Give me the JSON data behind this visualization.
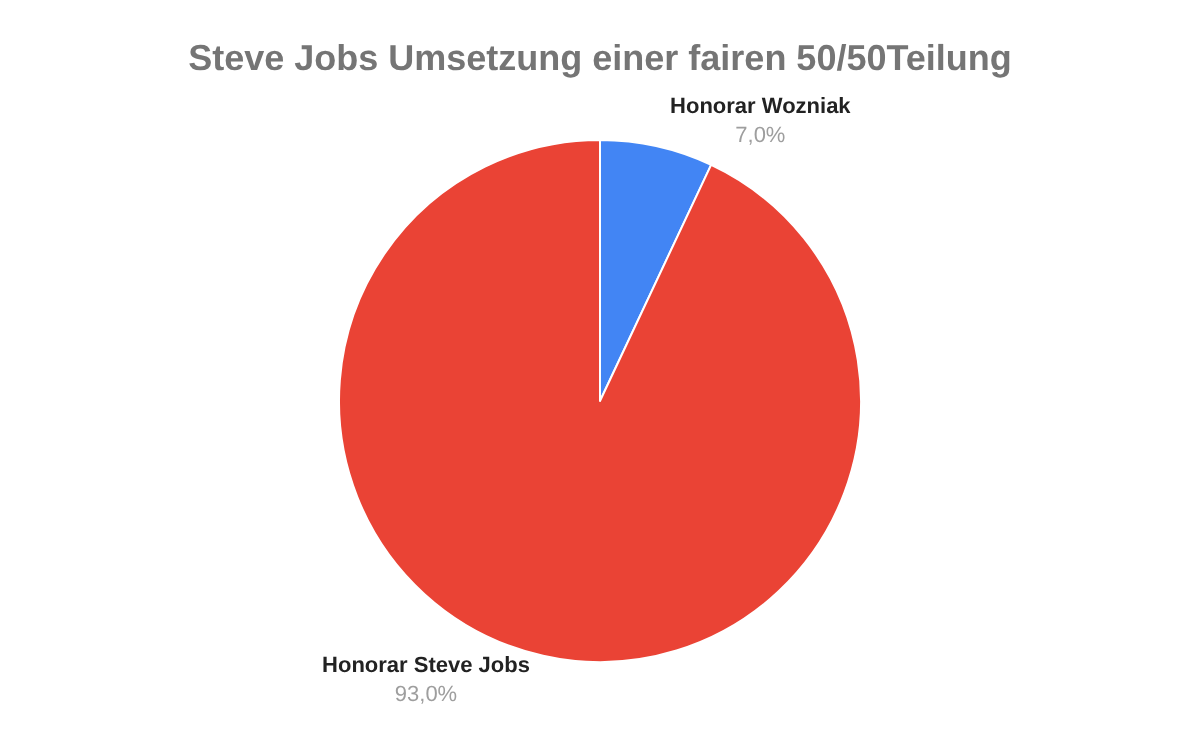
{
  "chart_data": {
    "type": "pie",
    "title": "Steve Jobs Umsetzung einer fairen 50/50Teilung",
    "categories": [
      "Honorar Wozniak",
      "Honorar Steve Jobs"
    ],
    "values": [
      7,
      93
    ],
    "colors": [
      "#4285f4",
      "#ea4335"
    ],
    "value_labels": [
      "7,0%",
      "93,0%"
    ],
    "legend": false
  }
}
